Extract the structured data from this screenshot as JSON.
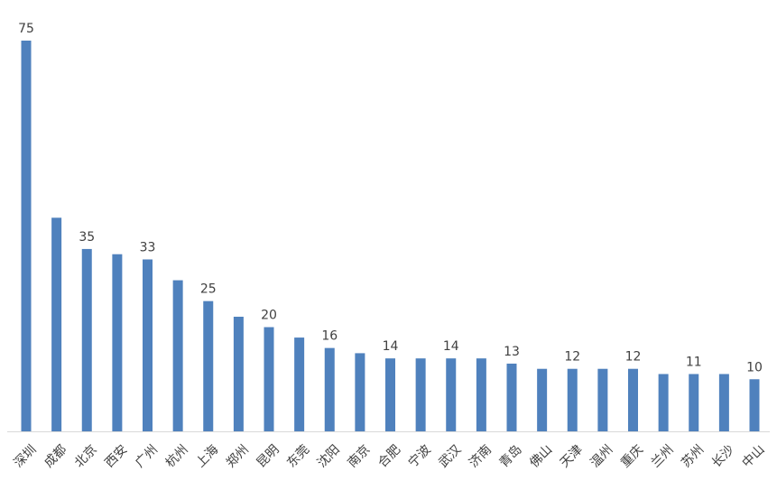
{
  "chart_data": {
    "type": "bar",
    "title": "",
    "xlabel": "",
    "ylabel": "",
    "ylim": [
      0,
      75
    ],
    "grid": false,
    "legend": "none",
    "colors": {
      "bar": "#4f81bd",
      "text": "#404040",
      "axis": "#d9d9d9"
    },
    "categories": [
      "深圳",
      "成都",
      "北京",
      "西安",
      "广州",
      "杭州",
      "上海",
      "郑州",
      "昆明",
      "东莞",
      "沈阳",
      "南京",
      "合肥",
      "宁波",
      "武汉",
      "济南",
      "青岛",
      "佛山",
      "天津",
      "温州",
      "重庆",
      "兰州",
      "苏州",
      "长沙",
      "中山"
    ],
    "values": [
      75,
      41,
      35,
      34,
      33,
      29,
      25,
      22,
      20,
      18,
      16,
      15,
      14,
      14,
      14,
      14,
      13,
      12,
      12,
      12,
      12,
      11,
      11,
      11,
      10
    ],
    "data_labels": [
      "75",
      "",
      "35",
      "",
      "33",
      "",
      "25",
      "",
      "20",
      "",
      "16",
      "",
      "14",
      "",
      "14",
      "",
      "13",
      "",
      "12",
      "",
      "12",
      "",
      "11",
      "",
      "10"
    ]
  }
}
